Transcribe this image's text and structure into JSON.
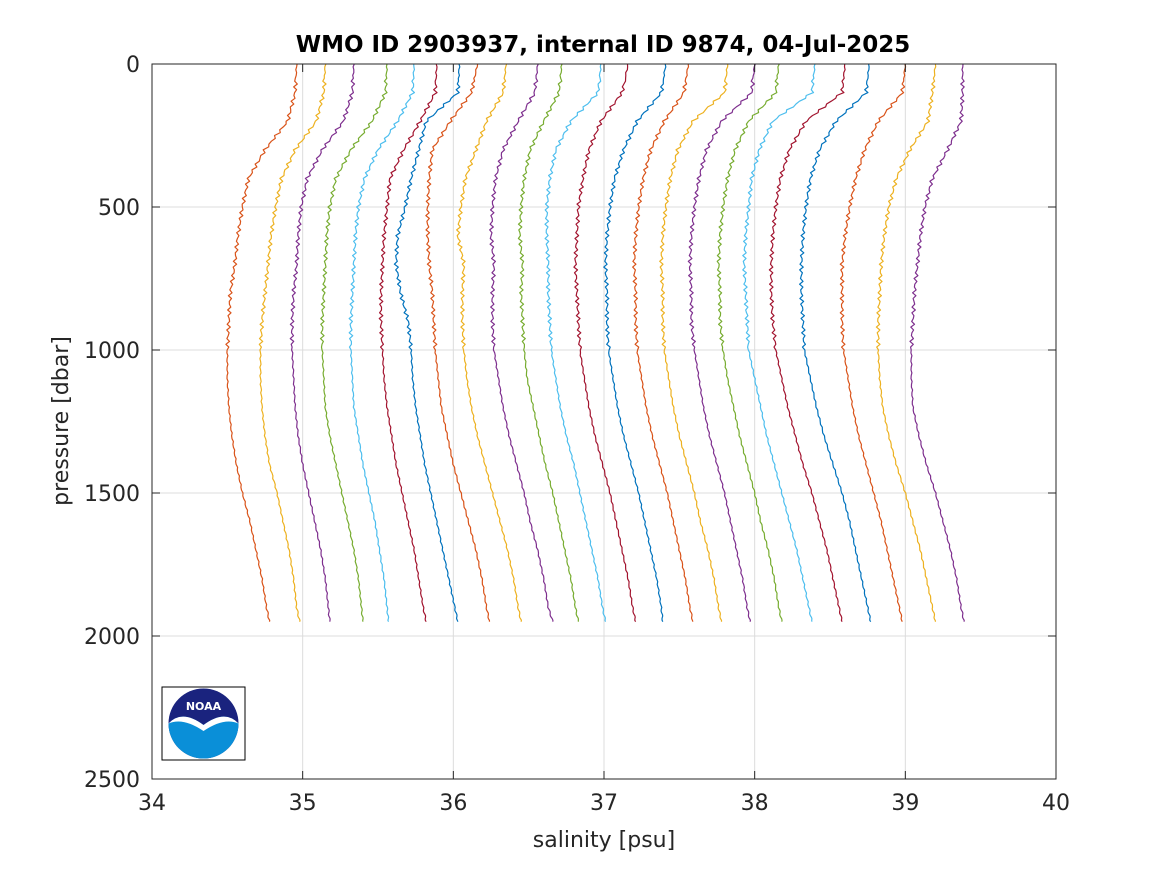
{
  "chart_data": {
    "type": "line",
    "title": "WMO ID 2903937, internal ID 9874, 04-Jul-2025",
    "xlabel": "salinity [psu]",
    "ylabel": "pressure [dbar]",
    "xlim": [
      34,
      40
    ],
    "ylim": [
      0,
      2500
    ],
    "y_reversed": true,
    "grid": true,
    "xticks": [
      "34",
      "35",
      "36",
      "37",
      "38",
      "39",
      "40"
    ],
    "yticks": [
      "0",
      "500",
      "1000",
      "1500",
      "2000",
      "2500"
    ],
    "pressure_levels": [
      0,
      100,
      200,
      300,
      400,
      500,
      600,
      700,
      800,
      900,
      1000,
      1100,
      1200,
      1300,
      1400,
      1500,
      1600,
      1700,
      1800,
      1900,
      1950
    ],
    "series": [
      {
        "color": "#D95319",
        "values": [
          34.96,
          34.95,
          34.9,
          34.75,
          34.64,
          34.6,
          34.57,
          34.55,
          34.52,
          34.51,
          34.5,
          34.5,
          34.51,
          34.53,
          34.56,
          34.6,
          34.65,
          34.69,
          34.73,
          34.76,
          34.78
        ]
      },
      {
        "color": "#EDB120",
        "values": [
          35.15,
          35.14,
          35.09,
          34.95,
          34.86,
          34.82,
          34.79,
          34.77,
          34.75,
          34.73,
          34.72,
          34.72,
          34.73,
          34.75,
          34.78,
          34.83,
          34.87,
          34.91,
          34.94,
          34.96,
          34.98
        ]
      },
      {
        "color": "#7E2F8E",
        "values": [
          35.34,
          35.33,
          35.27,
          35.13,
          35.03,
          34.99,
          34.97,
          34.96,
          34.94,
          34.93,
          34.93,
          34.94,
          34.95,
          34.97,
          35.0,
          35.04,
          35.08,
          35.12,
          35.15,
          35.17,
          35.18
        ]
      },
      {
        "color": "#77AC30",
        "values": [
          35.56,
          35.55,
          35.46,
          35.32,
          35.22,
          35.18,
          35.16,
          35.15,
          35.14,
          35.13,
          35.13,
          35.14,
          35.15,
          35.18,
          35.22,
          35.26,
          35.3,
          35.34,
          35.37,
          35.39,
          35.4
        ]
      },
      {
        "color": "#4DBEEE",
        "values": [
          35.74,
          35.73,
          35.63,
          35.5,
          35.41,
          35.37,
          35.35,
          35.34,
          35.33,
          35.32,
          35.32,
          35.33,
          35.34,
          35.37,
          35.4,
          35.44,
          35.48,
          35.51,
          35.54,
          35.56,
          35.57
        ]
      },
      {
        "color": "#A2142F",
        "values": [
          35.89,
          35.88,
          35.78,
          35.67,
          35.58,
          35.56,
          35.54,
          35.53,
          35.52,
          35.52,
          35.53,
          35.54,
          35.56,
          35.59,
          35.62,
          35.66,
          35.7,
          35.74,
          35.77,
          35.8,
          35.82
        ]
      },
      {
        "color": "#0072BD",
        "values": [
          36.04,
          36.03,
          35.82,
          35.77,
          35.72,
          35.68,
          35.63,
          35.62,
          35.65,
          35.7,
          35.72,
          35.73,
          35.75,
          35.78,
          35.81,
          35.85,
          35.89,
          35.93,
          35.97,
          36.01,
          36.03
        ]
      },
      {
        "color": "#D95319",
        "values": [
          36.16,
          36.12,
          35.98,
          35.86,
          35.84,
          35.83,
          35.83,
          35.84,
          35.86,
          35.87,
          35.88,
          35.9,
          35.92,
          35.96,
          36.0,
          36.05,
          36.1,
          36.15,
          36.19,
          36.22,
          36.24
        ]
      },
      {
        "color": "#EDB120",
        "values": [
          36.35,
          36.33,
          36.22,
          36.15,
          36.08,
          36.05,
          36.03,
          36.07,
          36.06,
          36.06,
          36.07,
          36.09,
          36.12,
          36.16,
          36.21,
          36.26,
          36.31,
          36.36,
          36.4,
          36.43,
          36.45
        ]
      },
      {
        "color": "#7E2F8E",
        "values": [
          36.56,
          36.54,
          36.43,
          36.33,
          36.28,
          36.26,
          36.25,
          36.27,
          36.26,
          36.26,
          36.27,
          36.3,
          36.33,
          36.37,
          36.42,
          36.47,
          36.51,
          36.56,
          36.6,
          36.63,
          36.66
        ]
      },
      {
        "color": "#77AC30",
        "values": [
          36.72,
          36.7,
          36.6,
          36.51,
          36.47,
          36.45,
          36.44,
          36.46,
          36.45,
          36.46,
          36.47,
          36.49,
          36.53,
          36.57,
          36.61,
          36.66,
          36.7,
          36.74,
          36.78,
          36.81,
          36.83
        ]
      },
      {
        "color": "#4DBEEE",
        "values": [
          36.98,
          36.96,
          36.78,
          36.68,
          36.64,
          36.62,
          36.62,
          36.63,
          36.63,
          36.64,
          36.65,
          36.68,
          36.71,
          36.75,
          36.8,
          36.84,
          36.88,
          36.92,
          36.96,
          36.99,
          37.01
        ]
      },
      {
        "color": "#A2142F",
        "values": [
          37.16,
          37.12,
          36.98,
          36.9,
          36.86,
          36.83,
          36.82,
          36.81,
          36.82,
          36.83,
          36.84,
          36.87,
          36.9,
          36.94,
          36.99,
          37.04,
          37.08,
          37.12,
          37.16,
          37.19,
          37.21
        ]
      },
      {
        "color": "#0072BD",
        "values": [
          37.41,
          37.38,
          37.22,
          37.13,
          37.07,
          37.04,
          37.02,
          37.01,
          37.02,
          37.02,
          37.03,
          37.06,
          37.09,
          37.13,
          37.18,
          37.23,
          37.27,
          37.31,
          37.35,
          37.38,
          37.39
        ]
      },
      {
        "color": "#D95319",
        "values": [
          37.56,
          37.53,
          37.4,
          37.31,
          37.26,
          37.23,
          37.21,
          37.2,
          37.21,
          37.21,
          37.22,
          37.25,
          37.28,
          37.32,
          37.37,
          37.42,
          37.46,
          37.5,
          37.54,
          37.57,
          37.59
        ]
      },
      {
        "color": "#EDB120",
        "values": [
          37.82,
          37.8,
          37.59,
          37.49,
          37.44,
          37.41,
          37.39,
          37.38,
          37.39,
          37.39,
          37.4,
          37.43,
          37.46,
          37.5,
          37.55,
          37.6,
          37.64,
          37.69,
          37.73,
          37.76,
          37.78
        ]
      },
      {
        "color": "#7E2F8E",
        "values": [
          38.0,
          37.98,
          37.78,
          37.68,
          37.63,
          37.6,
          37.58,
          37.57,
          37.58,
          37.58,
          37.6,
          37.63,
          37.66,
          37.7,
          37.75,
          37.8,
          37.84,
          37.88,
          37.92,
          37.95,
          37.97
        ]
      },
      {
        "color": "#77AC30",
        "values": [
          38.16,
          38.14,
          37.96,
          37.87,
          37.82,
          37.79,
          37.77,
          37.76,
          37.77,
          37.77,
          37.79,
          37.82,
          37.86,
          37.9,
          37.95,
          38.0,
          38.04,
          38.09,
          38.13,
          38.16,
          38.18
        ]
      },
      {
        "color": "#4DBEEE",
        "values": [
          38.4,
          38.38,
          38.12,
          38.03,
          37.98,
          37.96,
          37.94,
          37.93,
          37.94,
          37.95,
          37.96,
          38.0,
          38.04,
          38.08,
          38.13,
          38.18,
          38.23,
          38.28,
          38.32,
          38.36,
          38.38
        ]
      },
      {
        "color": "#A2142F",
        "values": [
          38.6,
          38.58,
          38.34,
          38.23,
          38.17,
          38.14,
          38.12,
          38.11,
          38.11,
          38.12,
          38.14,
          38.18,
          38.22,
          38.27,
          38.32,
          38.38,
          38.43,
          38.48,
          38.52,
          38.56,
          38.58
        ]
      },
      {
        "color": "#0072BD",
        "values": [
          38.76,
          38.74,
          38.54,
          38.43,
          38.37,
          38.34,
          38.32,
          38.31,
          38.31,
          38.32,
          38.33,
          38.37,
          38.41,
          38.46,
          38.52,
          38.58,
          38.63,
          38.67,
          38.71,
          38.75,
          38.77
        ]
      },
      {
        "color": "#D95319",
        "values": [
          39.0,
          38.98,
          38.82,
          38.73,
          38.67,
          38.63,
          38.6,
          38.58,
          38.58,
          38.58,
          38.59,
          38.62,
          38.65,
          38.69,
          38.74,
          38.79,
          38.84,
          38.88,
          38.92,
          38.96,
          38.98
        ]
      },
      {
        "color": "#EDB120",
        "values": [
          39.2,
          39.18,
          39.15,
          39.03,
          38.94,
          38.89,
          38.86,
          38.84,
          38.83,
          38.82,
          38.82,
          38.83,
          38.85,
          38.89,
          38.94,
          39.0,
          39.05,
          39.1,
          39.14,
          39.18,
          39.2
        ]
      },
      {
        "color": "#7E2F8E",
        "values": [
          39.38,
          39.38,
          39.37,
          39.28,
          39.18,
          39.13,
          39.1,
          39.08,
          39.06,
          39.05,
          39.04,
          39.04,
          39.05,
          39.09,
          39.14,
          39.2,
          39.25,
          39.3,
          39.34,
          39.37,
          39.39
        ]
      }
    ]
  },
  "logo": {
    "text": "NOAA",
    "colors": {
      "navy": "#1a237e",
      "blue": "#0a8fd8",
      "light": "#29b6f6"
    }
  }
}
